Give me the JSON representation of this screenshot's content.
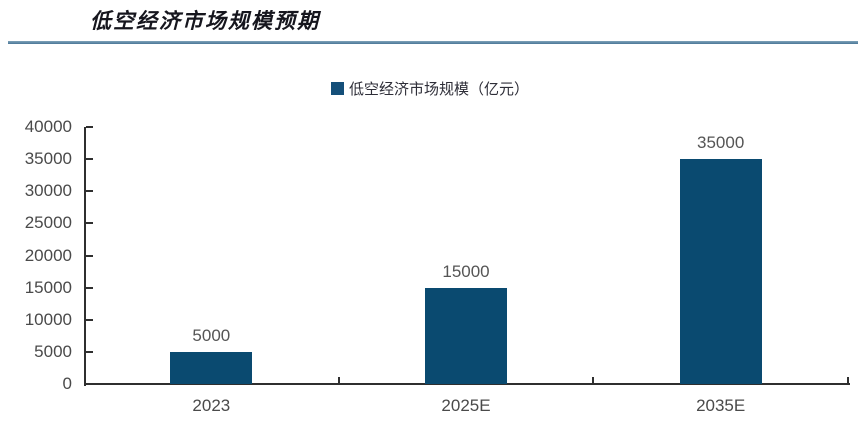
{
  "header": {
    "title": "低空经济市场规模预期"
  },
  "chart_data": {
    "type": "bar",
    "title": "低空经济市场规模预期",
    "categories": [
      "2023",
      "2025E",
      "2035E"
    ],
    "values": [
      5000,
      15000,
      35000
    ],
    "data_labels": [
      "5000",
      "15000",
      "35000"
    ],
    "legend": [
      {
        "label": "低空经济市场规模（亿元）",
        "color": "#144f79"
      }
    ],
    "legend_position": "top-center",
    "xlabel": "",
    "ylabel": "",
    "ylim": [
      0,
      40000
    ],
    "ytick_step": 5000,
    "ytick_labels": [
      "0",
      "5000",
      "10000",
      "15000",
      "20000",
      "25000",
      "30000",
      "35000",
      "40000"
    ],
    "grid": false,
    "bar_color": "#0a4a70",
    "axis_color": "#2f2f2f",
    "label_color": "#4a4a4a",
    "title_rule_color": "#4a7697"
  }
}
